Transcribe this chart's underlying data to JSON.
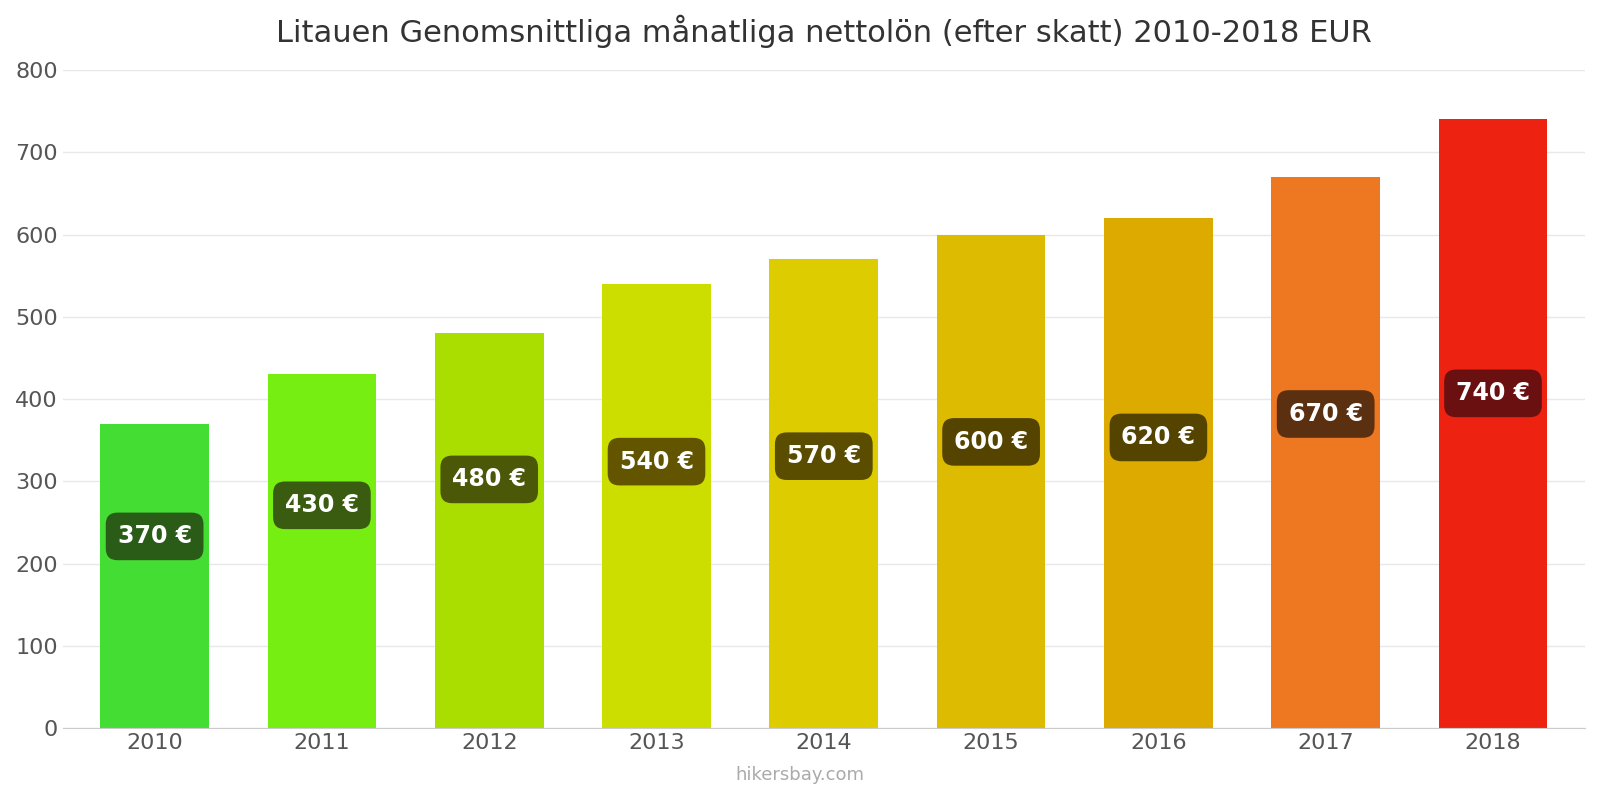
{
  "title": "Litauen Genomsnittliga månatliga nettolön (efter skatt) 2010-2018 EUR",
  "years": [
    2010,
    2011,
    2012,
    2013,
    2014,
    2015,
    2016,
    2017,
    2018
  ],
  "values": [
    370,
    430,
    480,
    540,
    570,
    600,
    620,
    670,
    740
  ],
  "bar_colors": [
    "#44dd33",
    "#77ee11",
    "#aadd00",
    "#ccdd00",
    "#ddcc00",
    "#ddbb00",
    "#ddaa00",
    "#ee7722",
    "#ee2211"
  ],
  "label_bg_colors": [
    "#2a5c18",
    "#3a5c10",
    "#4a5808",
    "#635500",
    "#5a4d00",
    "#554400",
    "#554400",
    "#5a3010",
    "#6b1010"
  ],
  "label_y_fracs": [
    0.63,
    0.63,
    0.63,
    0.6,
    0.58,
    0.58,
    0.57,
    0.57,
    0.55
  ],
  "ylabel_ticks": [
    0,
    100,
    200,
    300,
    400,
    500,
    600,
    700,
    800
  ],
  "watermark": "hikersbay.com",
  "background_color": "#ffffff",
  "grid_color": "#e8e8e8",
  "title_fontsize": 22,
  "label_fontsize": 17,
  "tick_fontsize": 16,
  "ylim": [
    0,
    800
  ]
}
